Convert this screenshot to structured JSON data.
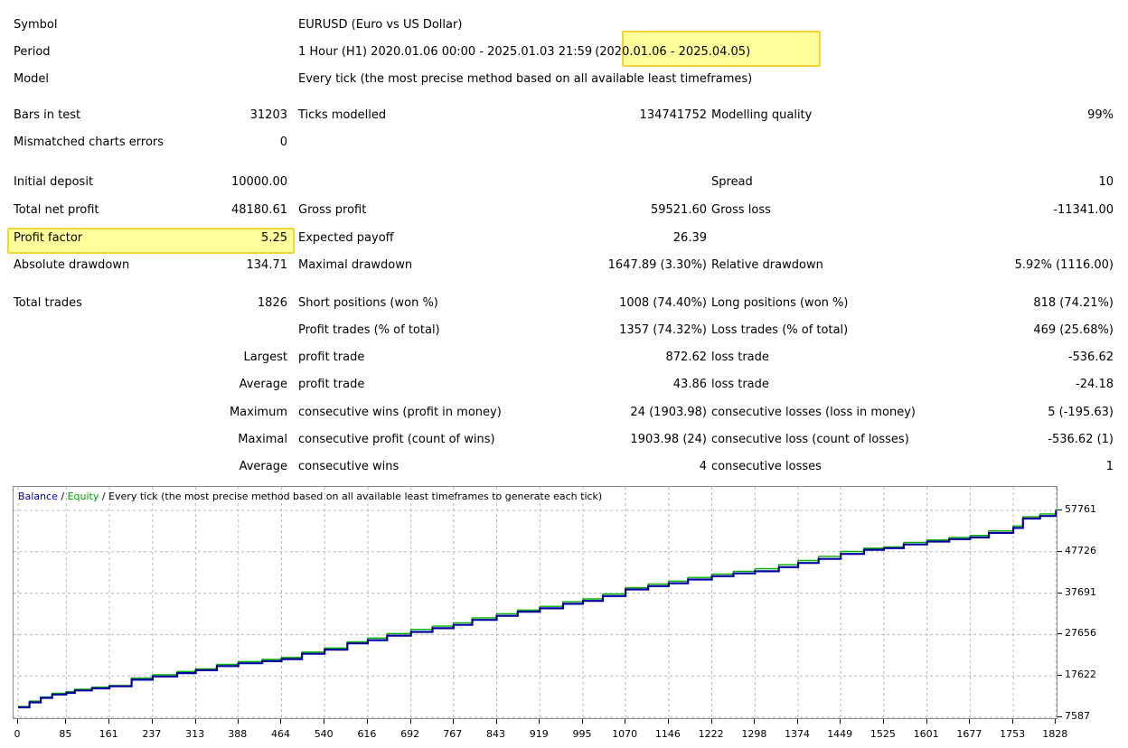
{
  "header": {
    "symbol": {
      "label": "Symbol",
      "value": "EURUSD (Euro vs US Dollar)"
    },
    "period": {
      "label": "Period",
      "value": "1 Hour (H1) 2020.01.06 00:00 - 2025.01.03 21:59",
      "highlight": "(2020.01.06 - 2025.04.05)"
    },
    "model": {
      "label": "Model",
      "value": "Every tick (the most precise method based on all available least timeframes)"
    }
  },
  "stats": {
    "bars_in_test": {
      "label": "Bars in test",
      "value": "31203"
    },
    "ticks_modelled": {
      "label": "Ticks modelled",
      "value": "134741752"
    },
    "modelling_quality": {
      "label": "Modelling quality",
      "value": "99%"
    },
    "mismatched": {
      "label": "Mismatched charts errors",
      "value": "0"
    },
    "initial_deposit": {
      "label": "Initial deposit",
      "value": "10000.00"
    },
    "spread": {
      "label": "Spread",
      "value": "10"
    },
    "total_net_profit": {
      "label": "Total net profit",
      "value": "48180.61"
    },
    "gross_profit": {
      "label": "Gross profit",
      "value": "59521.60"
    },
    "gross_loss": {
      "label": "Gross loss",
      "value": "-11341.00"
    },
    "profit_factor": {
      "label": "Profit factor",
      "value": "5.25"
    },
    "expected_payoff": {
      "label": "Expected payoff",
      "value": "26.39"
    },
    "absolute_drawdown": {
      "label": "Absolute drawdown",
      "value": "134.71"
    },
    "maximal_drawdown": {
      "label": "Maximal drawdown",
      "value": "1647.89 (3.30%)"
    },
    "relative_drawdown": {
      "label": "Relative drawdown",
      "value": "5.92% (1116.00)"
    },
    "total_trades": {
      "label": "Total trades",
      "value": "1826"
    },
    "short_positions": {
      "label": "Short positions (won %)",
      "value": "1008 (74.40%)"
    },
    "long_positions": {
      "label": "Long positions (won %)",
      "value": "818 (74.21%)"
    },
    "profit_trades": {
      "label": "Profit trades (% of total)",
      "value": "1357 (74.32%)"
    },
    "loss_trades": {
      "label": "Loss trades (% of total)",
      "value": "469 (25.68%)"
    },
    "largest": {
      "label": "Largest",
      "profit_label": "profit trade",
      "profit_value": "872.62",
      "loss_label": "loss trade",
      "loss_value": "-536.62"
    },
    "average": {
      "label": "Average",
      "profit_label": "profit trade",
      "profit_value": "43.86",
      "loss_label": "loss trade",
      "loss_value": "-24.18"
    },
    "maximum": {
      "label": "Maximum",
      "profit_label": "consecutive wins (profit in money)",
      "profit_value": "24 (1903.98)",
      "loss_label": "consecutive losses (loss in money)",
      "loss_value": "5 (-195.63)"
    },
    "maximal": {
      "label": "Maximal",
      "profit_label": "consecutive profit (count of wins)",
      "profit_value": "1903.98 (24)",
      "loss_label": "consecutive loss (count of losses)",
      "loss_value": "-536.62 (1)"
    },
    "average_consec": {
      "label": "Average",
      "profit_label": "consecutive wins",
      "profit_value": "4",
      "loss_label": "consecutive losses",
      "loss_value": "1"
    }
  },
  "legend": {
    "balance": "Balance",
    "sep1": " / ",
    "equity": "Equity",
    "rest": " / Every tick (the most precise method based on all available least timeframes to generate each tick)"
  },
  "colors": {
    "balance": "#0000a0",
    "equity": "#00b000",
    "highlight_fill": "#ffff9c",
    "highlight_border": "#f2d43a",
    "grid": "#b8b8b8"
  },
  "chart_data": {
    "type": "line",
    "title": "",
    "xlabel": "",
    "ylabel": "",
    "x_ticks": [
      "0",
      "85",
      "161",
      "237",
      "313",
      "388",
      "464",
      "540",
      "616",
      "692",
      "767",
      "843",
      "919",
      "995",
      "1070",
      "1146",
      "1222",
      "1298",
      "1374",
      "1449",
      "1525",
      "1601",
      "1677",
      "1753",
      "1828"
    ],
    "y_ticks": [
      "57761",
      "47726",
      "37691",
      "27656",
      "17622",
      "7587"
    ],
    "xlim": [
      0,
      1826
    ],
    "ylim": [
      7587,
      57761
    ],
    "grid": true,
    "series": [
      {
        "name": "Balance",
        "color": "#0000a0",
        "x": [
          0,
          20,
          40,
          60,
          85,
          100,
          130,
          161,
          200,
          237,
          280,
          313,
          350,
          388,
          430,
          464,
          500,
          540,
          580,
          616,
          650,
          692,
          730,
          767,
          800,
          843,
          880,
          919,
          960,
          995,
          1030,
          1070,
          1110,
          1146,
          1180,
          1222,
          1260,
          1298,
          1340,
          1374,
          1410,
          1449,
          1490,
          1525,
          1560,
          1601,
          1640,
          1677,
          1710,
          1753,
          1770,
          1800,
          1828
        ],
        "y": [
          10000,
          11200,
          12300,
          13100,
          13500,
          14100,
          14600,
          15100,
          16700,
          17500,
          18300,
          19000,
          20000,
          20700,
          21200,
          21700,
          23000,
          24000,
          25500,
          26300,
          27400,
          28300,
          29200,
          30000,
          31200,
          32200,
          33200,
          34000,
          35100,
          35800,
          37000,
          38600,
          39400,
          40100,
          41000,
          41800,
          42500,
          43000,
          44000,
          45000,
          46000,
          47200,
          48200,
          48600,
          49500,
          50200,
          50800,
          51200,
          52300,
          53500,
          55800,
          56400,
          57761
        ]
      },
      {
        "name": "Equity",
        "color": "#00b000",
        "x": [
          0,
          20,
          40,
          60,
          85,
          100,
          130,
          161,
          200,
          237,
          280,
          313,
          350,
          388,
          430,
          464,
          500,
          540,
          580,
          616,
          650,
          692,
          730,
          767,
          800,
          843,
          880,
          919,
          960,
          995,
          1030,
          1070,
          1110,
          1146,
          1180,
          1222,
          1260,
          1298,
          1340,
          1374,
          1410,
          1449,
          1490,
          1525,
          1560,
          1601,
          1640,
          1677,
          1710,
          1753,
          1770,
          1800,
          1828
        ],
        "y": [
          10200,
          11500,
          12500,
          13400,
          13800,
          14400,
          14900,
          15300,
          17100,
          17900,
          18700,
          19300,
          20400,
          21100,
          21600,
          22100,
          23400,
          24400,
          25900,
          26800,
          27900,
          28900,
          29700,
          30500,
          31700,
          32700,
          33600,
          34500,
          35600,
          36300,
          37500,
          39000,
          39900,
          40600,
          41500,
          42300,
          43000,
          43600,
          44600,
          45600,
          46600,
          47800,
          48600,
          48900,
          50000,
          50600,
          51200,
          51700,
          52800,
          54000,
          56200,
          56900,
          58100
        ]
      }
    ]
  }
}
